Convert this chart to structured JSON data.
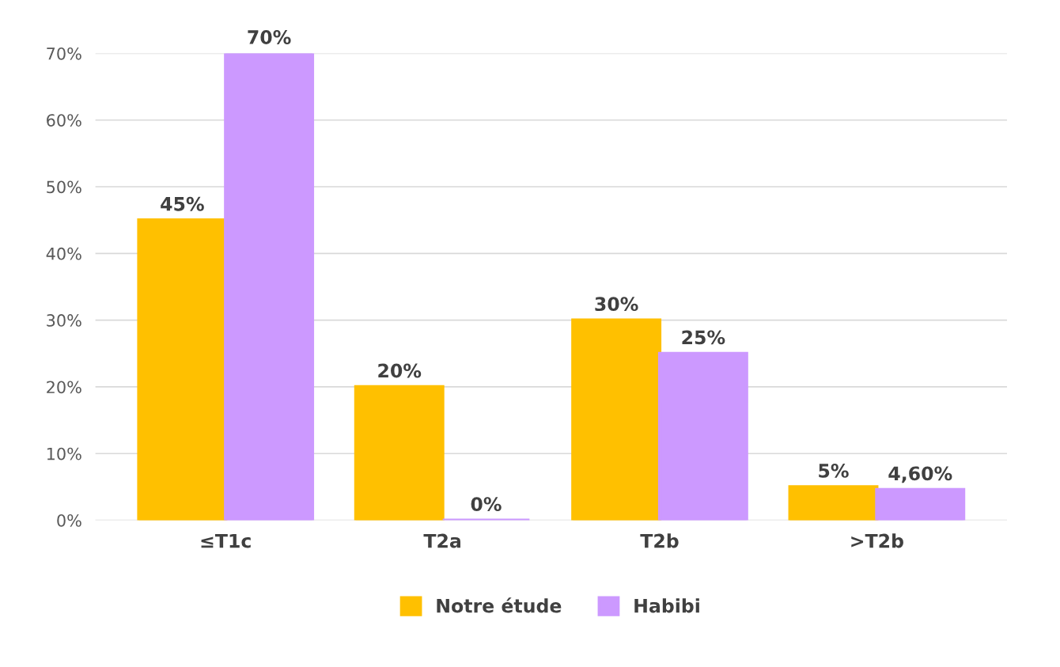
{
  "chart_data": {
    "type": "bar",
    "categories": [
      "≤T1c",
      "T2a",
      "T2b",
      ">T2b"
    ],
    "series": [
      {
        "name": "Notre étude",
        "color": "#ffc000",
        "values": [
          45,
          20,
          30,
          5
        ],
        "value_labels": [
          "45%",
          "20%",
          "30%",
          "5%"
        ]
      },
      {
        "name": "Habibi",
        "color": "#cc99ff",
        "values": [
          70,
          0,
          25,
          4.6
        ],
        "value_labels": [
          "70%",
          "0%",
          "25%",
          "4,60%"
        ]
      }
    ],
    "ylim": [
      0,
      70
    ],
    "yticks": [
      {
        "value": 0,
        "label": "0%"
      },
      {
        "value": 10,
        "label": "10%"
      },
      {
        "value": 20,
        "label": "20%"
      },
      {
        "value": 30,
        "label": "30%"
      },
      {
        "value": 40,
        "label": "40%"
      },
      {
        "value": 50,
        "label": "50%"
      },
      {
        "value": 60,
        "label": "60%"
      },
      {
        "value": 70,
        "label": "70%"
      }
    ],
    "grid": "y",
    "legend": "bottom"
  }
}
